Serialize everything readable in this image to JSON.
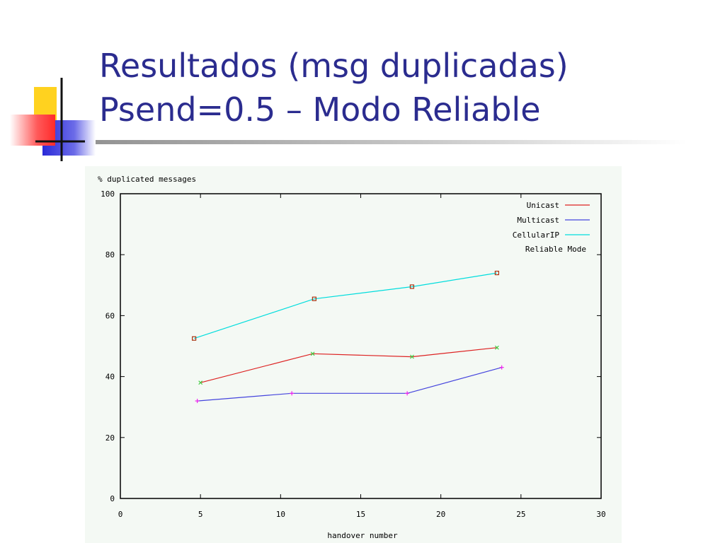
{
  "slide": {
    "title_line1": "Resultados (msg duplicadas)",
    "title_line2": "Psend=0.5 – Modo Reliable"
  },
  "chart_data": {
    "type": "line",
    "title": "",
    "ylabel": "% duplicated messages",
    "xlabel": "handover number",
    "xlim": [
      0,
      30
    ],
    "ylim": [
      0,
      100
    ],
    "xticks": [
      0,
      5,
      10,
      15,
      20,
      25,
      30
    ],
    "yticks": [
      0,
      20,
      40,
      60,
      80,
      100
    ],
    "legend_position": "top-right",
    "legend_note": "Reliable Mode",
    "grid": false,
    "series": [
      {
        "name": "Unicast",
        "color": "#dd2222",
        "marker_color": "#44cc44",
        "marker": "x",
        "x": [
          5,
          12,
          18.2,
          23.5
        ],
        "y": [
          38,
          47.5,
          46.5,
          49.5
        ]
      },
      {
        "name": "Multicast",
        "color": "#4444dd",
        "marker_color": "#ee22ee",
        "marker": "plus",
        "x": [
          4.8,
          10.7,
          17.9,
          23.8
        ],
        "y": [
          32,
          34.5,
          34.5,
          43
        ]
      },
      {
        "name": "CellularIP",
        "color": "#00dddd",
        "marker_color": "#aa3311",
        "marker": "square",
        "x": [
          4.6,
          12.1,
          18.2,
          23.5
        ],
        "y": [
          52.5,
          65.5,
          69.5,
          74
        ]
      }
    ]
  }
}
